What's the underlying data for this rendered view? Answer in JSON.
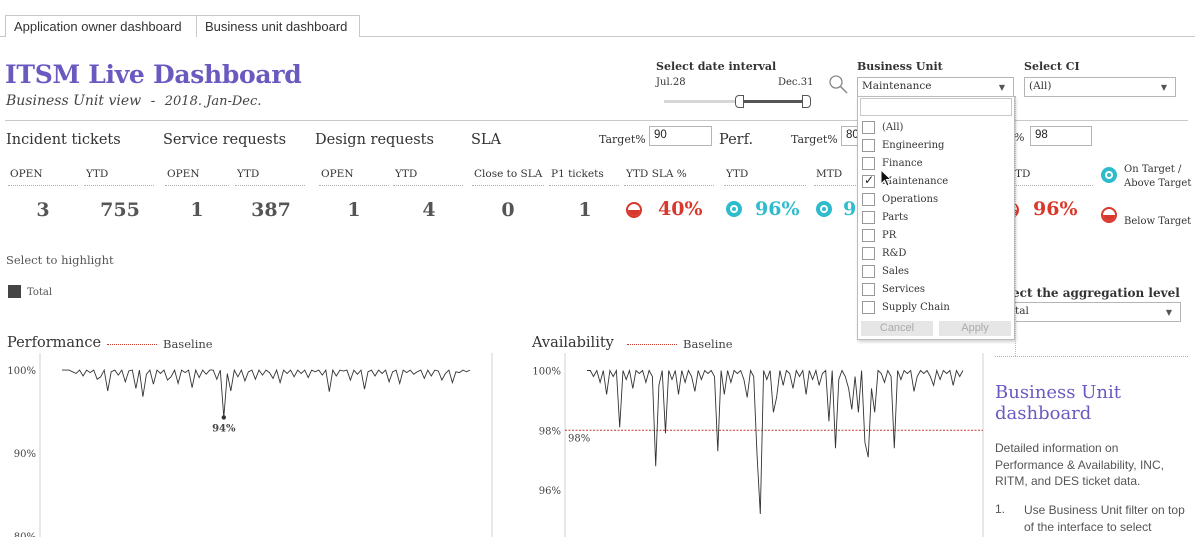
{
  "tabs": [
    {
      "label": "Application owner dashboard"
    },
    {
      "label": "Business unit dashboard"
    }
  ],
  "header": {
    "title": "ITSM Live Dashboard",
    "subtitle": "Business Unit view",
    "subtitle_sep": "-",
    "period": "2018. Jan-Dec."
  },
  "date_filter": {
    "label": "Select date interval",
    "start": "Jul.28",
    "end": "Dec.31"
  },
  "business_unit": {
    "label": "Business Unit",
    "selected": "Maintenance",
    "options": [
      {
        "label": "(All)",
        "checked": false
      },
      {
        "label": "Engineering",
        "checked": false
      },
      {
        "label": "Finance",
        "checked": false
      },
      {
        "label": "Maintenance",
        "checked": true
      },
      {
        "label": "Operations",
        "checked": false
      },
      {
        "label": "Parts",
        "checked": false
      },
      {
        "label": "PR",
        "checked": false
      },
      {
        "label": "R&D",
        "checked": false
      },
      {
        "label": "Sales",
        "checked": false
      },
      {
        "label": "Services",
        "checked": false
      },
      {
        "label": "Supply Chain",
        "checked": false
      }
    ],
    "cancel_label": "Cancel",
    "apply_label": "Apply"
  },
  "select_ci": {
    "label": "Select CI",
    "selected": "(All)"
  },
  "sections": {
    "incident": "Incident tickets",
    "service": "Service requests",
    "design": "Design requests",
    "sla": "SLA",
    "perf": "Perf."
  },
  "targets": {
    "sla_label": "Target%",
    "sla_value": "90",
    "perf_label": "Target%",
    "perf_value": "80",
    "avail_pct_sign": "%",
    "avail_value": "98"
  },
  "metrics": {
    "incident_open_label": "OPEN",
    "incident_open": "3",
    "incident_ytd_label": "YTD",
    "incident_ytd": "755",
    "service_open_label": "OPEN",
    "service_open": "1",
    "service_ytd_label": "YTD",
    "service_ytd": "387",
    "design_open_label": "OPEN",
    "design_open": "1",
    "design_ytd_label": "YTD",
    "design_ytd": "4",
    "close_sla_label": "Close to SLA",
    "close_sla": "0",
    "p1_label": "P1 tickets",
    "p1": "1",
    "ytd_sla_label": "YTD SLA %",
    "ytd_sla": "40%",
    "perf_ytd_label": "YTD",
    "perf_ytd": "96%",
    "perf_mtd_label": "MTD",
    "perf_mtd": "9",
    "avail_ytd_label": "TD",
    "avail_ytd": "96%"
  },
  "legend": {
    "on_target": "On Target / Above Target",
    "below_target": "Below Target"
  },
  "highlight": {
    "label": "Select to highlight",
    "total": "Total"
  },
  "aggregation": {
    "label": "ect the aggregation level",
    "selected": "tal"
  },
  "colors": {
    "accent": "#6b59c0",
    "teal": "#2ebccc",
    "red": "#d9382c",
    "baseline": "#c0392b"
  },
  "charts": {
    "performance": {
      "title": "Performance",
      "baseline_label": "Baseline"
    },
    "availability": {
      "title": "Availability",
      "baseline_label": "Baseline"
    }
  },
  "chart_data": [
    {
      "type": "line",
      "title": "Performance",
      "ylabel": "",
      "y_ticks": [
        "100%",
        "90%",
        "80%"
      ],
      "ylim": [
        80,
        100.5
      ],
      "annotation": "94%",
      "series": [
        {
          "values": [
            100,
            100,
            100,
            99.8,
            99.6,
            100,
            99.3,
            100,
            99.7,
            100,
            98.9,
            99.2,
            100,
            97.5,
            99.8,
            100,
            99.4,
            100,
            98.6,
            99.9,
            100,
            97.8,
            100,
            96.8,
            99.5,
            100,
            98.3,
            100,
            99.6,
            100,
            98.8,
            99.2,
            100,
            98.4,
            100,
            99.7,
            100,
            97.9,
            100,
            99.1,
            100,
            99.5,
            100,
            100,
            98.9,
            100,
            94.3,
            99.6,
            97.5,
            100,
            99.2,
            100,
            98.7,
            99.8,
            100,
            98.9,
            100,
            99.4,
            100,
            99.7,
            99,
            100,
            98.5,
            100,
            99.6,
            100,
            99.2,
            100,
            99.6,
            100,
            99.1,
            100,
            99.8,
            100,
            99.4,
            100,
            97.4,
            100,
            99.3,
            100,
            99.9,
            100,
            98.8,
            100,
            99.5,
            100,
            97.7,
            99.8,
            100,
            99.3,
            100,
            99.6,
            100,
            98.6,
            99.8,
            100,
            98.4,
            100,
            99.7,
            100,
            99.5,
            99.8,
            100,
            99,
            100,
            99.3,
            100,
            99.9,
            98.8,
            99.6,
            100,
            98.5,
            99.8,
            99.7,
            100,
            99.8,
            100
          ]
        }
      ]
    },
    {
      "type": "line",
      "title": "Availability",
      "ylabel": "",
      "y_ticks": [
        "100%",
        "98%",
        "96%"
      ],
      "ylim": [
        95.3,
        100.15
      ],
      "baseline": 98,
      "baseline_label": "98%",
      "series": [
        {
          "values": [
            100,
            100,
            99.8,
            100,
            99.6,
            100,
            99.2,
            100,
            99.8,
            100,
            98.1,
            100,
            99.7,
            100,
            99.4,
            100,
            99.9,
            100,
            99.6,
            100,
            99.8,
            96.8,
            99.5,
            100,
            97.9,
            100,
            99.7,
            100,
            99.2,
            100,
            99.6,
            100,
            99.8,
            99.3,
            100,
            99.7,
            100,
            99.9,
            100,
            99.8,
            97.3,
            100,
            99.2,
            100,
            99.6,
            100,
            99.9,
            100,
            99.7,
            99.1,
            100,
            99.8,
            97.2,
            95.2,
            100,
            99.7,
            100,
            98.6,
            99.1,
            100,
            99.5,
            100,
            99.9,
            99.4,
            100,
            99.8,
            100,
            99.2,
            100,
            99.7,
            100,
            99.5,
            99.9,
            100,
            98.3,
            100,
            97.4,
            99.7,
            100,
            99.8,
            99.4,
            98.7,
            99.8,
            98.6,
            100,
            97.6,
            97.1,
            99.4,
            98.6,
            100,
            99.9,
            99.6,
            100,
            99.8,
            97.4,
            100,
            99.7,
            100,
            99.9,
            100,
            99.3,
            99.8,
            100,
            99.9,
            100,
            99.8,
            99.5,
            100,
            99.7,
            100,
            99.9,
            100,
            99.5,
            100,
            99.8,
            100
          ]
        }
      ]
    }
  ],
  "side_panel": {
    "title": "Business Unit dashboard",
    "text": "Detailed information on Performance & Availability, INC, RITM, and DES ticket data.",
    "step1_num": "1.",
    "step1_text": "Use Business Unit  filter on top of the interface to select"
  }
}
